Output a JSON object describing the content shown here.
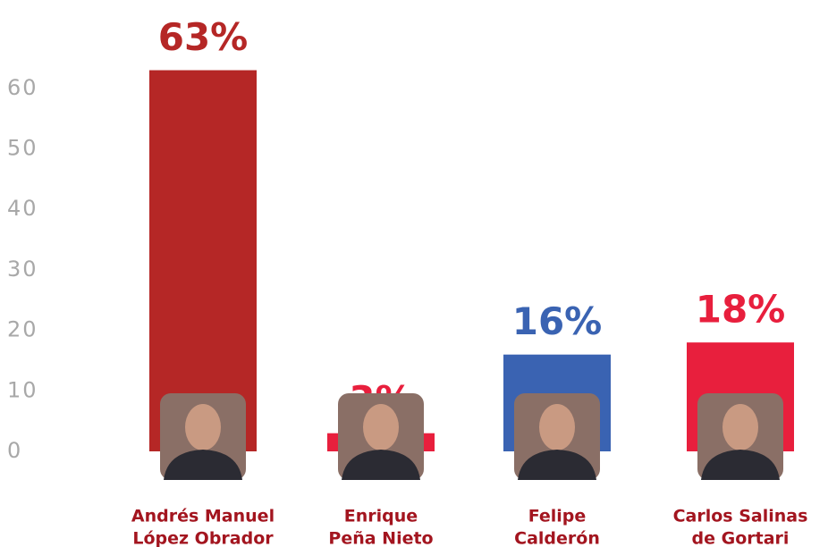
{
  "chart_data": {
    "type": "bar",
    "categories": [
      [
        "Andrés Manuel",
        "López Obrador"
      ],
      [
        "Enrique",
        "Peña Nieto"
      ],
      [
        "Felipe",
        "Calderón"
      ],
      [
        "Carlos Salinas",
        "de Gortari"
      ]
    ],
    "values": [
      63,
      3,
      16,
      18
    ],
    "value_labels": [
      "63%",
      "3%",
      "16%",
      "18%"
    ],
    "colors": [
      "#b52726",
      "#e81f3d",
      "#3a63b2",
      "#e81f3d"
    ],
    "ylim": [
      0,
      65
    ],
    "yticks": [
      0,
      10,
      20,
      30,
      40,
      50,
      60
    ]
  }
}
